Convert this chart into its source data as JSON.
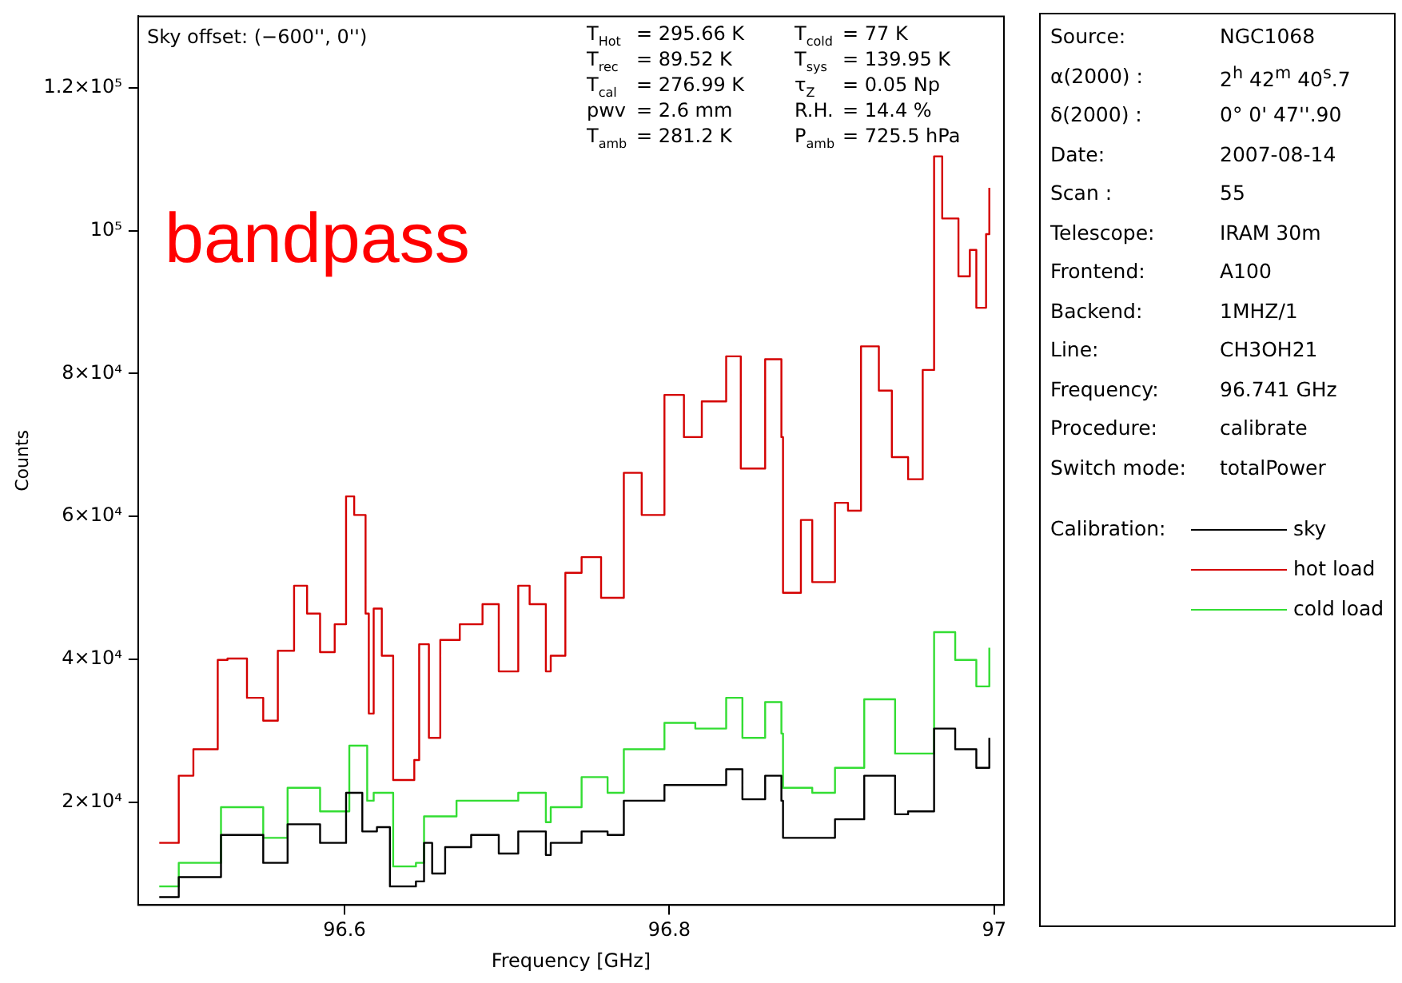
{
  "chart_data": {
    "type": "step",
    "xlabel": "Frequency [GHz]",
    "ylabel": "Counts",
    "legend_title": "Calibration:",
    "legend": "right",
    "grid": false,
    "xlim": [
      96.473,
      97.006
    ],
    "xticks": [
      96.6,
      96.8,
      97
    ],
    "ylim": [
      5600,
      130000
    ],
    "yticks": [
      {
        "value": 20000,
        "label": "2×10⁴"
      },
      {
        "value": 40000,
        "label": "4×10⁴"
      },
      {
        "value": 60000,
        "label": "6×10⁴"
      },
      {
        "value": 80000,
        "label": "8×10⁴"
      },
      {
        "value": 100000,
        "label": "10⁵"
      },
      {
        "value": 120000,
        "label": "1.2×10⁵"
      }
    ],
    "series": [
      {
        "name": "sky",
        "color": "#000000",
        "x": [
          96.486,
          96.498,
          96.524,
          96.55,
          96.565,
          96.585,
          96.601,
          96.611,
          96.62,
          96.628,
          96.644,
          96.649,
          96.654,
          96.662,
          96.678,
          96.695,
          96.707,
          96.724,
          96.727,
          96.746,
          96.762,
          96.772,
          96.797,
          96.816,
          96.835,
          96.845,
          96.859,
          96.869,
          96.87,
          96.888,
          96.902,
          96.92,
          96.939,
          96.947,
          96.963,
          96.976,
          96.989,
          96.997
        ],
        "values": [
          6700,
          9500,
          15400,
          11500,
          16900,
          14300,
          21300,
          15900,
          16500,
          8200,
          8900,
          14300,
          10000,
          13700,
          15400,
          12800,
          15900,
          12600,
          14300,
          15900,
          15400,
          20200,
          22400,
          22400,
          24600,
          20400,
          23700,
          20200,
          15000,
          15000,
          17600,
          23700,
          18300,
          18700,
          30300,
          27400,
          24800,
          29000
        ]
      },
      {
        "name": "hot load",
        "color": "#d40000",
        "x": [
          96.486,
          96.498,
          96.507,
          96.522,
          96.528,
          96.54,
          96.55,
          96.559,
          96.569,
          96.577,
          96.585,
          96.594,
          96.601,
          96.606,
          96.613,
          96.615,
          96.618,
          96.623,
          96.63,
          96.643,
          96.646,
          96.652,
          96.659,
          96.671,
          96.685,
          96.695,
          96.707,
          96.714,
          96.724,
          96.727,
          96.736,
          96.746,
          96.758,
          96.772,
          96.783,
          96.797,
          96.809,
          96.82,
          96.835,
          96.844,
          96.859,
          96.869,
          96.87,
          96.881,
          96.888,
          96.902,
          96.91,
          96.918,
          96.929,
          96.937,
          96.947,
          96.956,
          96.963,
          96.968,
          96.978,
          96.985,
          96.989,
          96.995,
          96.997
        ],
        "values": [
          14300,
          23700,
          27400,
          39900,
          40100,
          34600,
          31400,
          41200,
          50300,
          46400,
          41000,
          44900,
          62800,
          60200,
          46400,
          32400,
          47100,
          40500,
          23100,
          25900,
          42100,
          29000,
          42700,
          44900,
          47700,
          38300,
          50300,
          47700,
          38300,
          40500,
          52100,
          54300,
          48600,
          66100,
          60200,
          77000,
          71100,
          76100,
          82400,
          66700,
          82000,
          71100,
          49300,
          59500,
          50800,
          61900,
          60800,
          83800,
          77600,
          68300,
          65200,
          80500,
          110400,
          101700,
          93600,
          97300,
          89200,
          99500,
          106000
        ]
      },
      {
        "name": "cold load",
        "color": "#33dd33",
        "x": [
          96.486,
          96.498,
          96.524,
          96.55,
          96.565,
          96.585,
          96.603,
          96.614,
          96.618,
          96.63,
          96.644,
          96.649,
          96.659,
          96.669,
          96.691,
          96.707,
          96.724,
          96.727,
          96.746,
          96.762,
          96.772,
          96.797,
          96.816,
          96.835,
          96.845,
          96.859,
          96.869,
          96.87,
          96.888,
          96.902,
          96.92,
          96.939,
          96.947,
          96.963,
          96.976,
          96.989,
          96.997
        ],
        "values": [
          8200,
          11500,
          19300,
          15000,
          22000,
          18700,
          27900,
          20200,
          21300,
          11000,
          11500,
          18000,
          18000,
          20200,
          20200,
          21300,
          17200,
          19300,
          23500,
          21300,
          27400,
          31100,
          30300,
          34600,
          29000,
          34000,
          29600,
          22000,
          21300,
          24800,
          34400,
          26800,
          26800,
          43800,
          39900,
          36200,
          41600
        ]
      }
    ],
    "annotations": [
      "Sky offset: (−600'', 0'')",
      "T$_{Hot}$",
      "= 295.66 K",
      "T$_{cold}$",
      "= 77 K",
      "T$_{rec}$",
      "= 89.52 K",
      "T$_{sys}$",
      "= 139.95 K",
      "T$_{cal}$",
      "= 276.99 K",
      "τ$_{Z}$",
      "= 0.05 Np",
      "pwv",
      "= 2.6 mm",
      "R.H.",
      "= 14.4 %",
      "T$_{amb}$",
      "= 281.2 K",
      "P$_{amb}$",
      "= 725.5 hPa",
      "bandpass",
      "Source:",
      "NGC1068",
      "α(2000) :",
      "2$^{h}$ 42$^{m}$ 40$^{s}$.7",
      "δ(2000) :",
      "0° 0' 47''.90",
      "Date:",
      "2007-08-14",
      "Scan :",
      "55",
      "Telescope:",
      "IRAM 30m",
      "Frontend:",
      "A100",
      "Backend:",
      "1MHZ/1",
      "Line:",
      "CH3OH21",
      "Frequency:",
      "96.741 GHz",
      "Procedure:",
      "calibrate",
      "Switch mode:",
      "totalPower"
    ]
  }
}
